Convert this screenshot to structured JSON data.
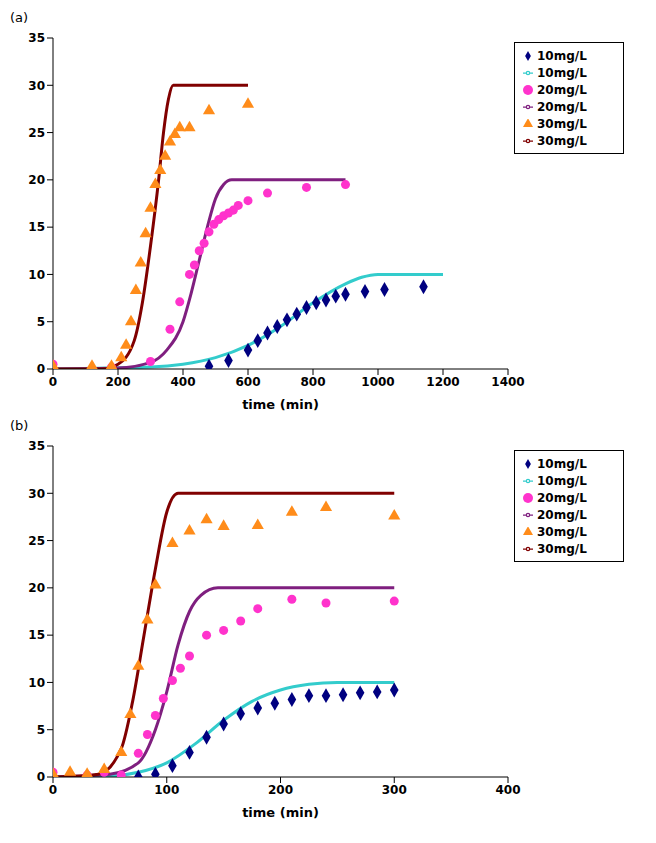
{
  "chart_data": [
    {
      "type": "line",
      "title": "(a)",
      "x_label": "time (min)",
      "xlim": [
        0,
        1400
      ],
      "xticks": [
        0,
        200,
        400,
        600,
        800,
        1000,
        1200,
        1400
      ],
      "ylim": [
        0,
        35
      ],
      "yticks": [
        0,
        5,
        10,
        15,
        20,
        25,
        30,
        35
      ],
      "grid": false,
      "legend": "upper right",
      "series": [
        {
          "name": "10mg/L",
          "type": "scatter",
          "marker": "diamond",
          "color": "#000080",
          "x": [
            480,
            540,
            600,
            630,
            660,
            690,
            720,
            750,
            780,
            810,
            840,
            870,
            900,
            960,
            1020,
            1140
          ],
          "values": [
            0.3,
            0.9,
            2,
            3,
            3.8,
            4.5,
            5.2,
            5.8,
            6.5,
            7,
            7.3,
            7.7,
            7.9,
            8.2,
            8.4,
            8.7
          ]
        },
        {
          "name": "20mg/L",
          "type": "scatter",
          "marker": "circle",
          "color": "#ff33cc",
          "x": [
            0,
            180,
            300,
            360,
            390,
            420,
            435,
            450,
            465,
            480,
            495,
            510,
            525,
            540,
            555,
            570,
            600,
            660,
            780,
            900
          ],
          "values": [
            0.5,
            0.2,
            0.8,
            4.2,
            7.1,
            10,
            11,
            12.5,
            13.3,
            14.5,
            15.3,
            15.8,
            16.2,
            16.5,
            16.8,
            17.3,
            17.8,
            18.6,
            19.2,
            19.5
          ]
        },
        {
          "name": "30mg/L",
          "type": "scatter",
          "marker": "triangle",
          "color": "#ff8c1a",
          "x": [
            0,
            120,
            180,
            210,
            225,
            240,
            255,
            270,
            285,
            300,
            315,
            330,
            345,
            360,
            375,
            390,
            420,
            480,
            600
          ],
          "values": [
            0.3,
            0.3,
            0.3,
            1.2,
            2.5,
            5,
            8.3,
            11.2,
            14.3,
            17,
            19.5,
            21,
            22.5,
            24,
            24.8,
            25.5,
            25.5,
            27.3,
            28
          ]
        },
        {
          "name": "10mg/L",
          "type": "line",
          "line_style": "solid",
          "color": "#33cccc",
          "x": [
            0,
            300,
            400,
            500,
            600,
            700,
            800,
            900,
            950,
            1000,
            1200
          ],
          "values": [
            0,
            0.2,
            0.5,
            1.2,
            2.5,
            4.5,
            7,
            9,
            9.7,
            10,
            10
          ]
        },
        {
          "name": "20mg/L",
          "type": "line",
          "line_style": "solid",
          "color": "#7f1f7f",
          "x": [
            0,
            200,
            300,
            350,
            400,
            425,
            450,
            475,
            500,
            525,
            550,
            900
          ],
          "values": [
            0,
            0.1,
            0.7,
            2,
            5,
            8,
            11.5,
            15,
            18,
            19.5,
            20,
            20
          ]
        },
        {
          "name": "30mg/L",
          "type": "line",
          "line_style": "solid",
          "color": "#800000",
          "x": [
            0,
            150,
            200,
            250,
            275,
            300,
            325,
            340,
            355,
            370,
            600
          ],
          "values": [
            0,
            0,
            0.5,
            3,
            7,
            13,
            20,
            25,
            28.5,
            30,
            30
          ]
        }
      ]
    },
    {
      "type": "line",
      "title": "(b)",
      "x_label": "time (min)",
      "xlim": [
        0,
        400
      ],
      "xticks": [
        0,
        100,
        200,
        300,
        400
      ],
      "ylim": [
        0,
        35
      ],
      "yticks": [
        0,
        5,
        10,
        15,
        20,
        25,
        30,
        35
      ],
      "grid": false,
      "legend": "upper right",
      "series": [
        {
          "name": "10mg/L",
          "type": "scatter",
          "marker": "diamond",
          "color": "#000080",
          "x": [
            75,
            90,
            105,
            120,
            135,
            150,
            165,
            180,
            195,
            210,
            225,
            240,
            255,
            270,
            285,
            300
          ],
          "values": [
            0,
            0.3,
            1.2,
            2.6,
            4.2,
            5.6,
            6.7,
            7.3,
            7.8,
            8.2,
            8.6,
            8.6,
            8.7,
            8.9,
            9,
            9.2
          ]
        },
        {
          "name": "20mg/L",
          "type": "scatter",
          "marker": "circle",
          "color": "#ff33cc",
          "x": [
            0,
            30,
            45,
            60,
            75,
            83,
            90,
            97,
            105,
            112,
            120,
            135,
            150,
            165,
            180,
            210,
            240,
            300
          ],
          "values": [
            0.5,
            0.2,
            0.5,
            0.2,
            2.5,
            4.5,
            6.5,
            8.3,
            10.2,
            11.5,
            12.8,
            15,
            15.5,
            16.5,
            17.8,
            18.8,
            18.4,
            18.6
          ]
        },
        {
          "name": "30mg/L",
          "type": "scatter",
          "marker": "triangle",
          "color": "#ff8c1a",
          "x": [
            0,
            15,
            30,
            45,
            60,
            68,
            75,
            83,
            90,
            105,
            120,
            135,
            150,
            180,
            210,
            240,
            300
          ],
          "values": [
            0.3,
            0.5,
            0.3,
            0.8,
            2.6,
            6.6,
            11.7,
            16.6,
            20.3,
            24.7,
            26,
            27.2,
            26.5,
            26.6,
            28,
            28.5,
            27.6
          ]
        },
        {
          "name": "10mg/L",
          "type": "line",
          "line_style": "solid",
          "color": "#33cccc",
          "x": [
            0,
            50,
            75,
            100,
            125,
            150,
            175,
            200,
            225,
            250,
            300
          ],
          "values": [
            0,
            0.1,
            0.5,
            1.5,
            3.5,
            6,
            8,
            9.2,
            9.8,
            10,
            10
          ]
        },
        {
          "name": "20mg/L",
          "type": "line",
          "line_style": "solid",
          "color": "#7f1f7f",
          "x": [
            0,
            50,
            75,
            90,
            100,
            110,
            120,
            130,
            145,
            300
          ],
          "values": [
            0,
            0.3,
            1.5,
            5,
            9,
            14,
            17.5,
            19.2,
            20,
            20
          ]
        },
        {
          "name": "30mg/L",
          "type": "line",
          "line_style": "solid",
          "color": "#800000",
          "x": [
            0,
            40,
            60,
            70,
            80,
            90,
            100,
            110,
            300
          ],
          "values": [
            0,
            0.3,
            3,
            8,
            15,
            22,
            28,
            30,
            30
          ]
        }
      ]
    }
  ]
}
